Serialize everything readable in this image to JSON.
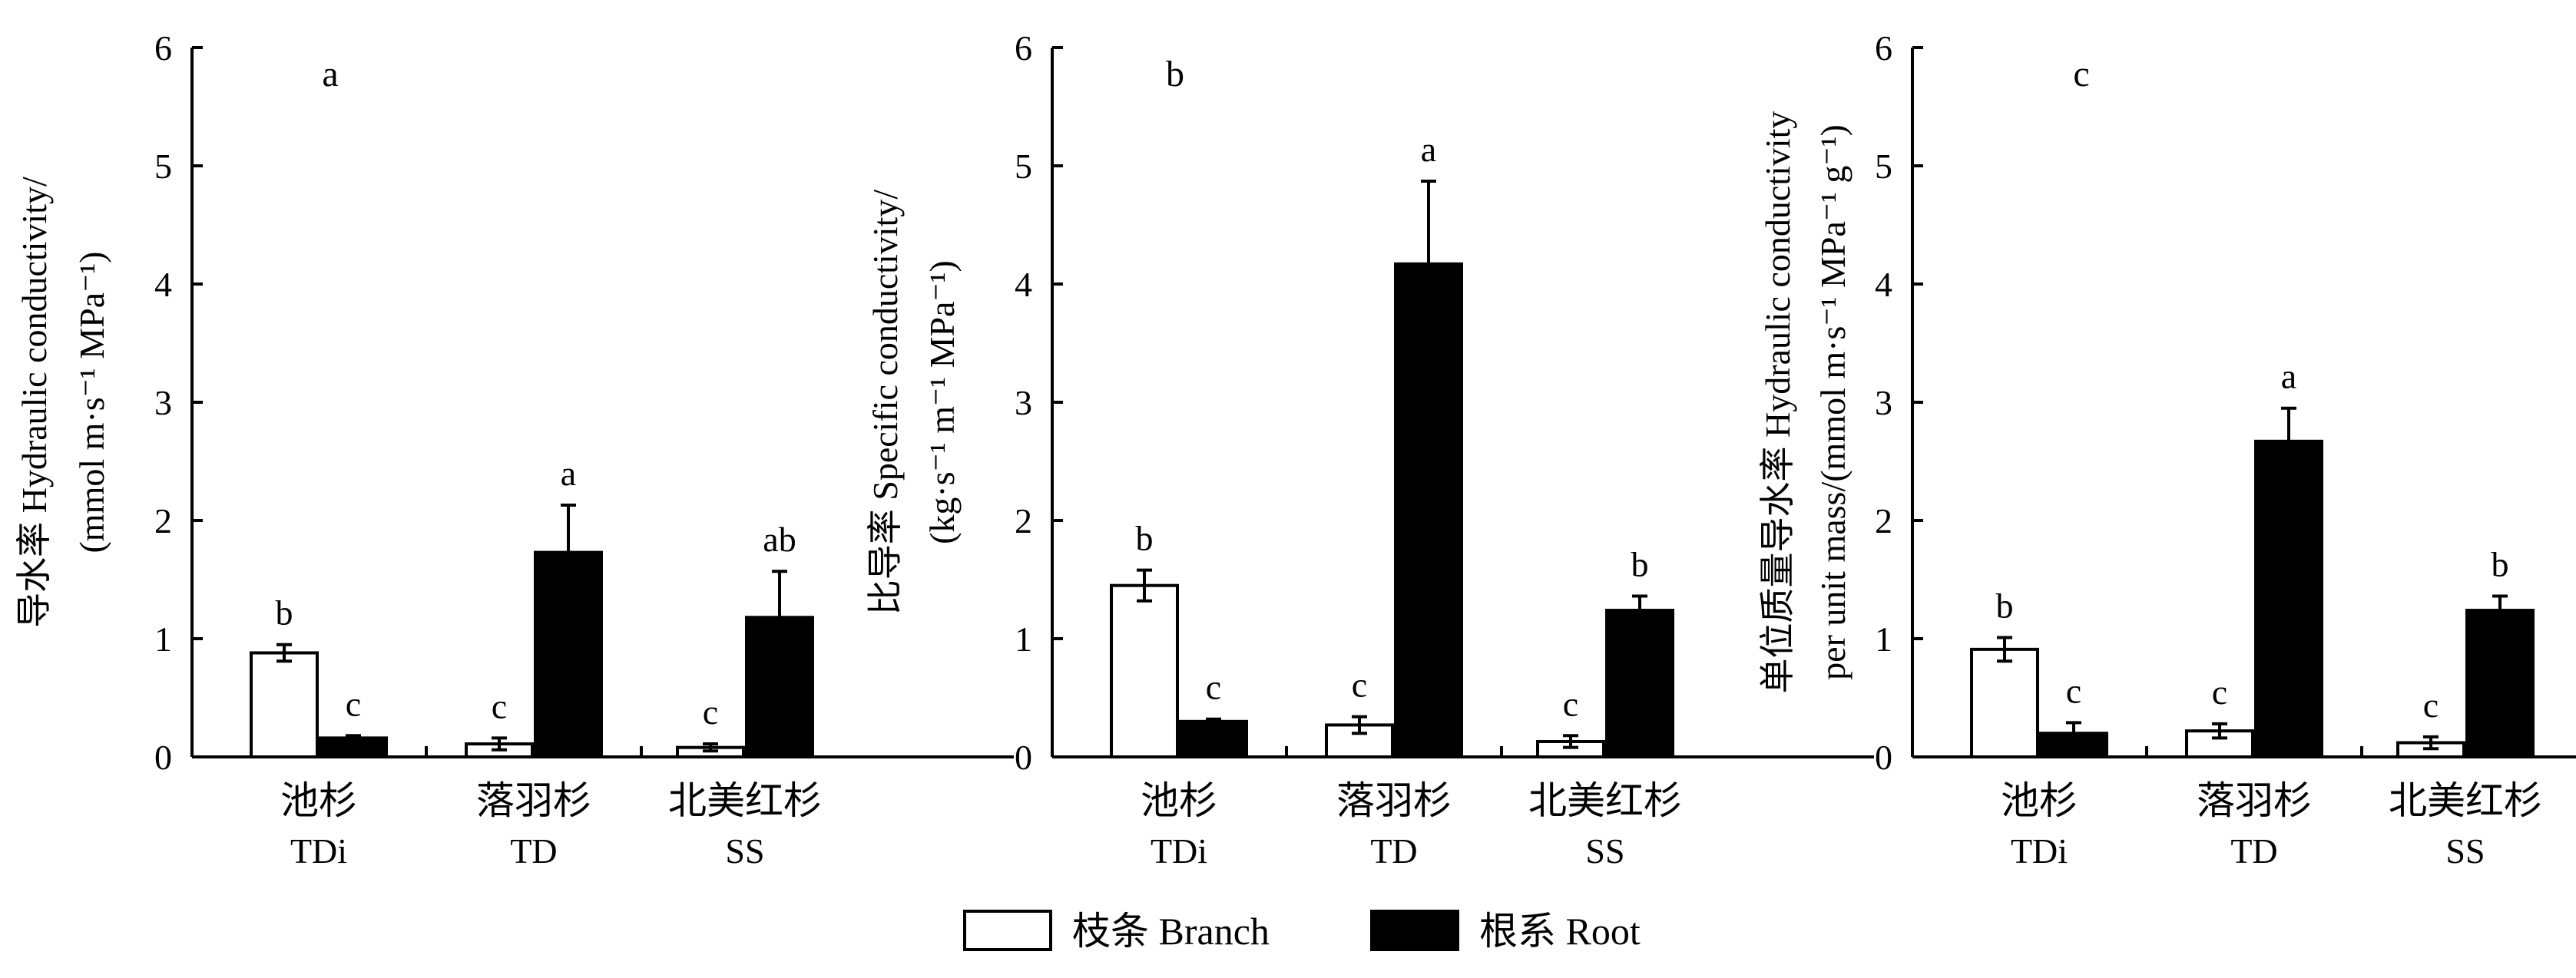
{
  "chart_data": [
    {
      "type": "bar",
      "panel_label": "a",
      "ylabel_lines": [
        "导水率  Hydraulic conductivity/",
        "(mmol m·s⁻¹ MPa⁻¹)"
      ],
      "ylim": [
        0,
        6
      ],
      "yticks": [
        "0",
        "1",
        "2",
        "3",
        "4",
        "5",
        "6"
      ],
      "categories": [
        {
          "cn": "池杉",
          "en": "TDi"
        },
        {
          "cn": "落羽杉",
          "en": "TD"
        },
        {
          "cn": "北美红杉",
          "en": "SS"
        }
      ],
      "series": [
        {
          "name": "枝条  Branch",
          "values": [
            0.88,
            0.11,
            0.08
          ],
          "errors": [
            0.07,
            0.05,
            0.03
          ],
          "letters": [
            "b",
            "c",
            "c"
          ]
        },
        {
          "name": "根系  Root",
          "values": [
            0.16,
            1.73,
            1.18
          ],
          "errors": [
            0.02,
            0.4,
            0.39
          ],
          "letters": [
            "c",
            "a",
            "ab"
          ]
        }
      ]
    },
    {
      "type": "bar",
      "panel_label": "b",
      "ylabel_lines": [
        "比导率  Specific conductivity/",
        "(kg·s⁻¹ m⁻¹ MPa⁻¹)"
      ],
      "ylim": [
        0,
        6
      ],
      "yticks": [
        "0",
        "1",
        "2",
        "3",
        "4",
        "5",
        "6"
      ],
      "categories": [
        {
          "cn": "池杉",
          "en": "TDi"
        },
        {
          "cn": "落羽杉",
          "en": "TD"
        },
        {
          "cn": "北美红杉",
          "en": "SS"
        }
      ],
      "series": [
        {
          "name": "枝条  Branch",
          "values": [
            1.45,
            0.27,
            0.13
          ],
          "errors": [
            0.13,
            0.07,
            0.05
          ],
          "letters": [
            "b",
            "c",
            "c"
          ]
        },
        {
          "name": "根系  Root",
          "values": [
            0.3,
            4.17,
            1.24
          ],
          "errors": [
            0.02,
            0.7,
            0.12
          ],
          "letters": [
            "c",
            "a",
            "b"
          ]
        }
      ]
    },
    {
      "type": "bar",
      "panel_label": "c",
      "ylabel_lines": [
        "单位质量导水率  Hydraulic conductivity",
        "per unit mass/(mmol m·s⁻¹ MPa⁻¹ g⁻¹)"
      ],
      "ylim": [
        0,
        6
      ],
      "yticks": [
        "0",
        "1",
        "2",
        "3",
        "4",
        "5",
        "6"
      ],
      "categories": [
        {
          "cn": "池杉",
          "en": "TDi"
        },
        {
          "cn": "落羽杉",
          "en": "TD"
        },
        {
          "cn": "北美红杉",
          "en": "SS"
        }
      ],
      "series": [
        {
          "name": "枝条  Branch",
          "values": [
            0.91,
            0.22,
            0.12
          ],
          "errors": [
            0.1,
            0.06,
            0.05
          ],
          "letters": [
            "b",
            "c",
            "c"
          ]
        },
        {
          "name": "根系  Root",
          "values": [
            0.2,
            2.67,
            1.24
          ],
          "errors": [
            0.09,
            0.28,
            0.12
          ],
          "letters": [
            "c",
            "a",
            "b"
          ]
        }
      ]
    }
  ],
  "legend": {
    "position": "bottom-center",
    "items": [
      {
        "label": "枝条  Branch",
        "fill": "#ffffff"
      },
      {
        "label": "根系  Root",
        "fill": "#000000"
      }
    ]
  }
}
